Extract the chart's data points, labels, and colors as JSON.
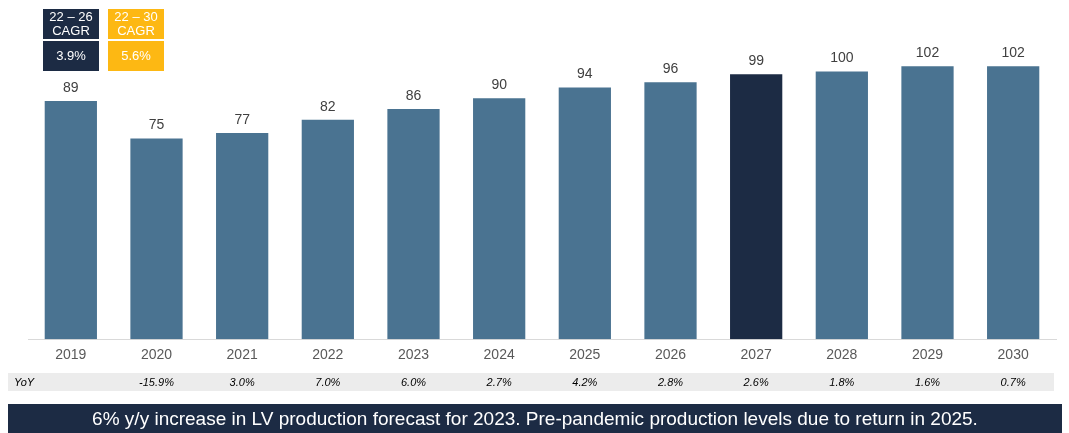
{
  "chart_data": {
    "type": "bar",
    "categories": [
      "2019",
      "2020",
      "2021",
      "2022",
      "2023",
      "2024",
      "2025",
      "2026",
      "2027",
      "2028",
      "2029",
      "2030"
    ],
    "values": [
      89,
      75,
      77,
      82,
      86,
      90,
      94,
      96,
      99,
      100,
      102,
      102
    ],
    "colors": [
      "#4a7391",
      "#4a7391",
      "#4a7391",
      "#4a7391",
      "#4a7391",
      "#4a7391",
      "#4a7391",
      "#4a7391",
      "#1c2b44",
      "#4a7391",
      "#4a7391",
      "#4a7391"
    ],
    "data_labels": true,
    "grid": false,
    "legend": false,
    "annotations": [
      "22 – 26 CAGR",
      "3.9%",
      "22 – 30 CAGR",
      "5.6%",
      "YoY",
      "-15.9%",
      "3.0%",
      "7.0%",
      "6.0%",
      "2.7%",
      "4.2%",
      "2.8%",
      "2.6%",
      "1.8%",
      "1.6%",
      "0.7%",
      "6% y/y increase in LV production forecast for 2023. Pre-pandemic production levels due to return in 2025."
    ]
  }
}
